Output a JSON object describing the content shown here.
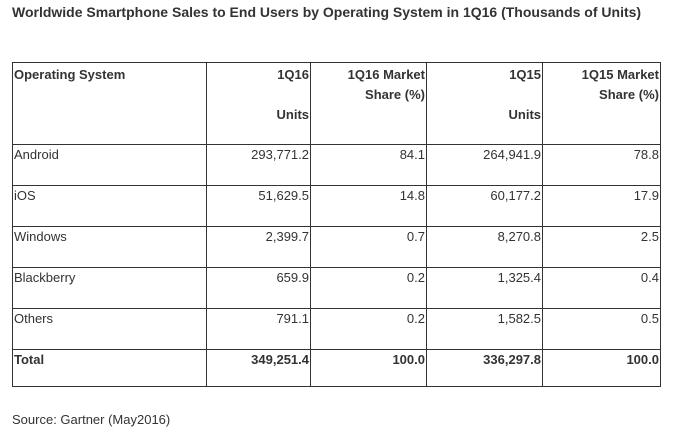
{
  "title": "Worldwide Smartphone Sales to End Users by Operating System in 1Q16 (Thousands of Units)",
  "table": {
    "headers": {
      "os": "Operating System",
      "q16_units_top": "1Q16",
      "q16_units_bottom": "Units",
      "q16_share_top": "1Q16 Market",
      "q16_share_bottom": "Share (%)",
      "q15_units_top": "1Q15",
      "q15_units_bottom": "Units",
      "q15_share_top": "1Q15 Market",
      "q15_share_bottom": "Share (%)"
    },
    "rows": [
      {
        "os": "Android",
        "q16_units": "293,771.2",
        "q16_share": "84.1",
        "q15_units": "264,941.9",
        "q15_share": "78.8"
      },
      {
        "os": "iOS",
        "q16_units": "51,629.5",
        "q16_share": "14.8",
        "q15_units": "60,177.2",
        "q15_share": "17.9"
      },
      {
        "os": "Windows",
        "q16_units": "2,399.7",
        "q16_share": "0.7",
        "q15_units": "8,270.8",
        "q15_share": "2.5"
      },
      {
        "os": "Blackberry",
        "q16_units": "659.9",
        "q16_share": "0.2",
        "q15_units": "1,325.4",
        "q15_share": "0.4"
      },
      {
        "os": "Others",
        "q16_units": "791.1",
        "q16_share": "0.2",
        "q15_units": "1,582.5",
        "q15_share": "0.5"
      }
    ],
    "total": {
      "os": "Total",
      "q16_units": "349,251.4",
      "q16_share": "100.0",
      "q15_units": "336,297.8",
      "q15_share": "100.0"
    }
  },
  "source": "Source: Gartner (May2016)"
}
